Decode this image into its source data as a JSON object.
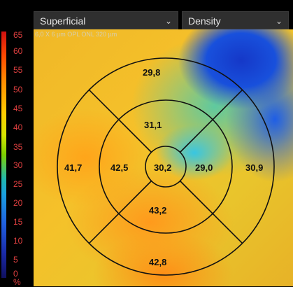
{
  "header": {
    "layer_select": {
      "value": "Superficial"
    },
    "metric_select": {
      "value": "Density"
    }
  },
  "scale": {
    "ticks": [
      "65",
      "60",
      "55",
      "50",
      "45",
      "40",
      "35",
      "30",
      "25",
      "20",
      "15",
      "10",
      "5",
      "0"
    ],
    "unit": "%"
  },
  "map": {
    "label": "6,0 X 6 µm   OPL  ONL   320 µm",
    "sectors": {
      "superior_outer": "29,8",
      "superior_inner": "31,1",
      "nasal_outer": "41,7",
      "nasal_inner": "42,5",
      "center": "30,2",
      "temporal_inner": "29,0",
      "temporal_outer": "30,9",
      "inferior_inner": "43,2",
      "inferior_outer": "42,8"
    }
  },
  "icons": {
    "dropdown": "chevron-down-icon"
  }
}
